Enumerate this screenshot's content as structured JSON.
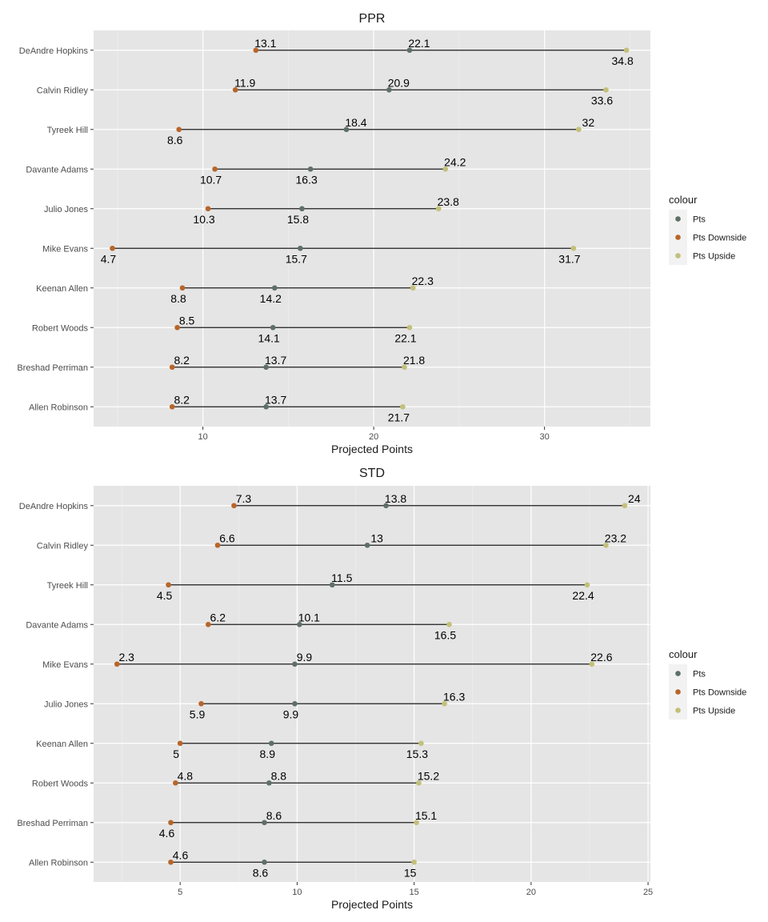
{
  "chart_data": [
    {
      "type": "dumbbell",
      "title": "PPR",
      "xlabel": "Projected Points",
      "xlim": [
        3.6,
        36.2
      ],
      "xticks": [
        10,
        20,
        30
      ],
      "grid": true,
      "legend": {
        "title": "colour",
        "position": "right"
      },
      "colors": {
        "Pts": "#5e7066",
        "Pts Downside": "#b8652a",
        "Pts Upside": "#c3c07a"
      },
      "categories": [
        "DeAndre Hopkins",
        "Calvin Ridley",
        "Tyreek Hill",
        "Davante Adams",
        "Julio Jones",
        "Mike Evans",
        "Keenan Allen",
        "Robert Woods",
        "Breshad Perriman",
        "Allen Robinson"
      ],
      "series": [
        {
          "name": "Pts",
          "values": [
            22.1,
            20.9,
            18.4,
            16.3,
            15.8,
            15.7,
            14.2,
            14.1,
            13.7,
            13.7
          ]
        },
        {
          "name": "Pts Downside",
          "values": [
            13.1,
            11.9,
            8.6,
            10.7,
            10.3,
            4.7,
            8.8,
            8.5,
            8.2,
            8.2
          ]
        },
        {
          "name": "Pts Upside",
          "values": [
            34.8,
            33.6,
            32,
            24.2,
            23.8,
            31.7,
            22.3,
            22.1,
            21.8,
            21.7
          ]
        }
      ],
      "labels": {
        "Pts": [
          "22.1",
          "20.9",
          "18.4",
          "16.3",
          "15.8",
          "15.7",
          "14.2",
          "14.1",
          "13.7",
          "13.7"
        ],
        "Pts Downside": [
          "13.1",
          "11.9",
          "8.6",
          "10.7",
          "10.3",
          "4.7",
          "8.8",
          "8.5",
          "8.2",
          "8.2"
        ],
        "Pts Upside": [
          "34.8",
          "33.6",
          "32",
          "24.2",
          "23.8",
          "31.7",
          "22.3",
          "22.1",
          "21.8",
          "21.7"
        ]
      },
      "label_above": {
        "Pts": [
          true,
          true,
          true,
          false,
          false,
          false,
          false,
          false,
          true,
          true
        ],
        "Pts Downside": [
          true,
          true,
          false,
          false,
          false,
          false,
          false,
          true,
          true,
          true
        ],
        "Pts Upside": [
          false,
          false,
          true,
          true,
          true,
          false,
          true,
          false,
          true,
          false
        ]
      }
    },
    {
      "type": "dumbbell",
      "title": "STD",
      "xlabel": "Projected Points",
      "xlim": [
        1.3,
        25.1
      ],
      "xticks": [
        5,
        10,
        15,
        20,
        25
      ],
      "grid": true,
      "legend": {
        "title": "colour",
        "position": "right"
      },
      "colors": {
        "Pts": "#5e7066",
        "Pts Downside": "#b8652a",
        "Pts Upside": "#c3c07a"
      },
      "categories": [
        "DeAndre Hopkins",
        "Calvin Ridley",
        "Tyreek Hill",
        "Davante Adams",
        "Mike Evans",
        "Julio Jones",
        "Keenan Allen",
        "Robert Woods",
        "Breshad Perriman",
        "Allen Robinson"
      ],
      "series": [
        {
          "name": "Pts",
          "values": [
            13.8,
            13,
            11.5,
            10.1,
            9.9,
            9.9,
            8.9,
            8.8,
            8.6,
            8.6
          ]
        },
        {
          "name": "Pts Downside",
          "values": [
            7.3,
            6.6,
            4.5,
            6.2,
            2.3,
            5.9,
            5,
            4.8,
            4.6,
            4.6
          ]
        },
        {
          "name": "Pts Upside",
          "values": [
            24,
            23.2,
            22.4,
            16.5,
            22.6,
            16.3,
            15.3,
            15.2,
            15.1,
            15
          ]
        }
      ],
      "labels": {
        "Pts": [
          "13.8",
          "13",
          "11.5",
          "10.1",
          "9.9",
          "9.9",
          "8.9",
          "8.8",
          "8.6",
          "8.6"
        ],
        "Pts Downside": [
          "7.3",
          "6.6",
          "4.5",
          "6.2",
          "2.3",
          "5.9",
          "5",
          "4.8",
          "4.6",
          "4.6"
        ],
        "Pts Upside": [
          "24",
          "23.2",
          "22.4",
          "16.5",
          "22.6",
          "16.3",
          "15.3",
          "15.2",
          "15.1",
          "15"
        ]
      },
      "label_above": {
        "Pts": [
          true,
          true,
          true,
          true,
          true,
          false,
          false,
          true,
          true,
          false
        ],
        "Pts Downside": [
          true,
          true,
          false,
          true,
          true,
          false,
          false,
          true,
          false,
          true
        ],
        "Pts Upside": [
          true,
          true,
          false,
          false,
          true,
          true,
          false,
          true,
          true,
          false
        ]
      }
    }
  ]
}
